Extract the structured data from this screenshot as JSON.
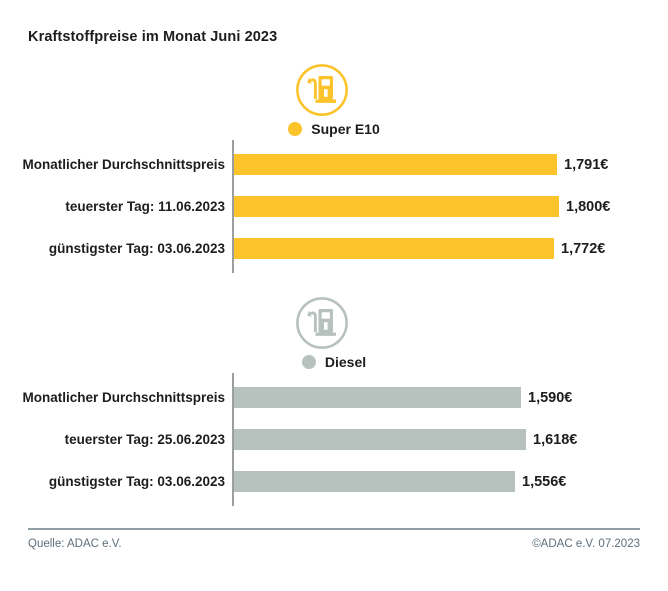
{
  "title": "Kraftstoffpreise im Monat Juni 2023",
  "colors": {
    "super_e10_yellow": "#FCC32B",
    "diesel_gray": "#B7C2BE",
    "axis_gray": "#9b9f9e",
    "text_black": "#1d1d1b",
    "footer_gray": "#5e6f7a",
    "divider_gray": "#8f9ea4"
  },
  "footer": {
    "source_label": "Quelle: ADAC e.V.",
    "copyright_label": "©ADAC e.V. 07.2023"
  },
  "chart_data": [
    {
      "type": "bar",
      "orientation": "horizontal",
      "title": "Super E10",
      "icon": "fuel-pump-icon",
      "color": "#FCC32B",
      "unit": "€",
      "categories": [
        "Monatlicher Durchschnittspreis",
        "teuerster Tag: 11.06.2023",
        "günstigster Tag: 03.06.2023"
      ],
      "values": [
        1.791,
        1.8,
        1.772
      ],
      "value_labels": [
        "1,791€",
        "1,800€",
        "1,772€"
      ],
      "xlim": [
        0,
        1.8
      ],
      "grid": false,
      "legend_position": "top-center"
    },
    {
      "type": "bar",
      "orientation": "horizontal",
      "title": "Diesel",
      "icon": "fuel-pump-icon",
      "color": "#B7C2BE",
      "unit": "€",
      "categories": [
        "Monatlicher Durchschnittspreis",
        "teuerster Tag: 25.06.2023",
        "günstigster Tag: 03.06.2023"
      ],
      "values": [
        1.59,
        1.618,
        1.556
      ],
      "value_labels": [
        "1,590€",
        "1,618€",
        "1,556€"
      ],
      "xlim": [
        0,
        1.8
      ],
      "grid": false,
      "legend_position": "top-center"
    }
  ]
}
